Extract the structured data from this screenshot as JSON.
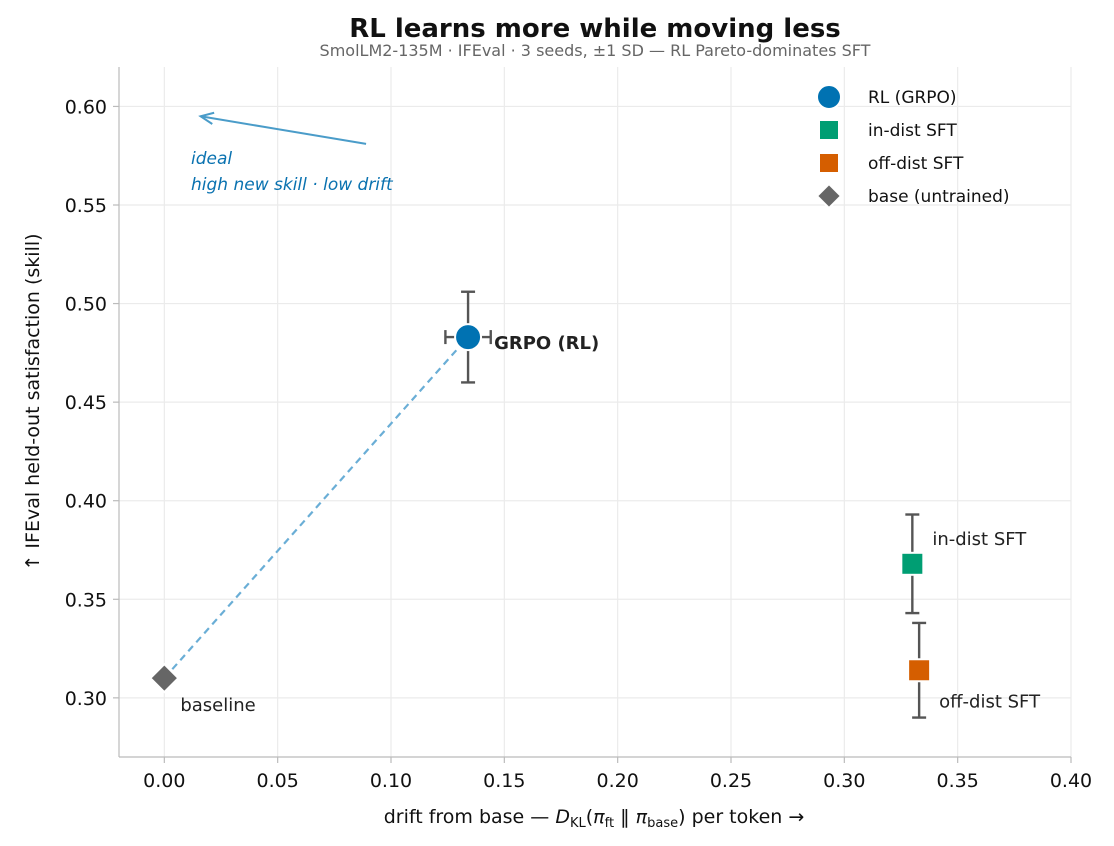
{
  "chart_data": {
    "type": "scatter",
    "title": "RL learns more while moving less",
    "subtitle": "SmolLM2-135M · IFEval · 3 seeds, ±1 SD — RL Pareto-dominates SFT",
    "xlabel": "drift from base  —  D_KL(π_ft ‖ π_base) per token  →",
    "ylabel": "↑  IFEval held-out satisfaction (skill)",
    "xlim": [
      -0.02,
      0.4
    ],
    "ylim": [
      0.27,
      0.62
    ],
    "x_ticks": [
      "0.00",
      "0.05",
      "0.10",
      "0.15",
      "0.20",
      "0.25",
      "0.30",
      "0.35",
      "0.40"
    ],
    "x_tick_values": [
      0.0,
      0.05,
      0.1,
      0.15,
      0.2,
      0.25,
      0.3,
      0.35,
      0.4
    ],
    "y_ticks": [
      "0.30",
      "0.35",
      "0.40",
      "0.45",
      "0.50",
      "0.55",
      "0.60"
    ],
    "y_tick_values": [
      0.3,
      0.35,
      0.4,
      0.45,
      0.5,
      0.55,
      0.6
    ],
    "grid": true,
    "legend_position": "top-right",
    "series": [
      {
        "name": "RL (GRPO)",
        "marker": "circle",
        "color": "#0072b2",
        "x": 0.134,
        "y": 0.483,
        "y_sd": 0.023,
        "x_sd": 0.01,
        "annotation": "GRPO (RL)"
      },
      {
        "name": "in-dist SFT",
        "marker": "square",
        "color": "#009e73",
        "x": 0.33,
        "y": 0.368,
        "y_sd": 0.025,
        "annotation": "in-dist SFT"
      },
      {
        "name": "off-dist SFT",
        "marker": "square",
        "color": "#d55e00",
        "x": 0.333,
        "y": 0.314,
        "y_sd": 0.024,
        "annotation": "off-dist SFT"
      },
      {
        "name": "base (untrained)",
        "marker": "diamond",
        "color": "#666666",
        "x": 0.0,
        "y": 0.31,
        "annotation": "baseline"
      }
    ],
    "connector": {
      "from": "base (untrained)",
      "to": "RL (GRPO)",
      "style": "dashed",
      "color": "#6aaed6"
    },
    "ideal_arrow": {
      "from": [
        0.089,
        0.581
      ],
      "to": [
        0.016,
        0.595
      ],
      "color": "#4a9cc9"
    },
    "ideal_annotation": [
      "ideal",
      "high new skill · low drift"
    ]
  }
}
